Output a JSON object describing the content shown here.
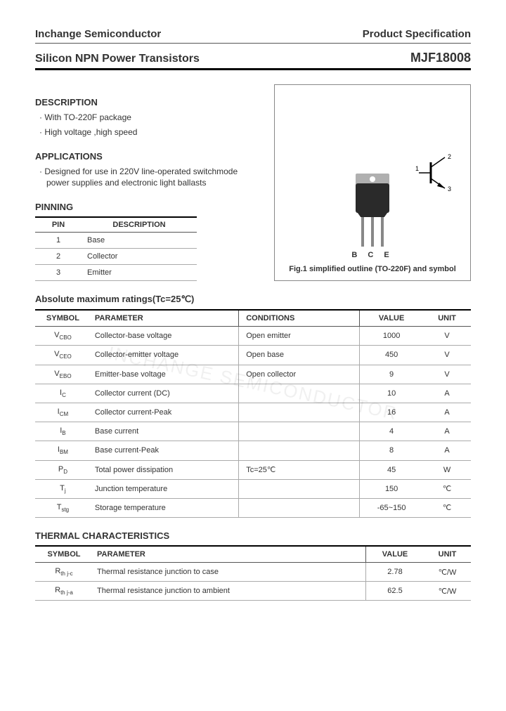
{
  "header": {
    "company": "Inchange Semiconductor",
    "doctype": "Product Specification"
  },
  "title": {
    "product_line": "Silicon NPN Power Transistors",
    "part_number": "MJF18008"
  },
  "description": {
    "heading": "DESCRIPTION",
    "items": [
      "With TO-220F package",
      "High voltage ,high speed"
    ]
  },
  "applications": {
    "heading": "APPLICATIONS",
    "items": [
      "Designed for use in 220V line-operated switchmode power supplies and electronic light ballasts"
    ]
  },
  "pinning": {
    "heading": "PINNING",
    "columns": [
      "PIN",
      "DESCRIPTION"
    ],
    "rows": [
      [
        "1",
        "Base"
      ],
      [
        "2",
        "Collector"
      ],
      [
        "3",
        "Emitter"
      ]
    ]
  },
  "figure": {
    "pin_labels": "B C E",
    "caption": "Fig.1 simplified outline (TO-220F) and symbol",
    "symbol_labels": {
      "base": "1",
      "collector": "2",
      "emitter": "3"
    }
  },
  "ratings": {
    "heading": "Absolute maximum ratings(Tc=25℃)",
    "columns": [
      "SYMBOL",
      "PARAMETER",
      "CONDITIONS",
      "VALUE",
      "UNIT"
    ],
    "rows": [
      {
        "sym": "V",
        "sub": "CBO",
        "param": "Collector-base voltage",
        "cond": "Open emitter",
        "val": "1000",
        "unit": "V"
      },
      {
        "sym": "V",
        "sub": "CEO",
        "param": "Collector-emitter voltage",
        "cond": "Open base",
        "val": "450",
        "unit": "V"
      },
      {
        "sym": "V",
        "sub": "EBO",
        "param": "Emitter-base voltage",
        "cond": "Open collector",
        "val": "9",
        "unit": "V"
      },
      {
        "sym": "I",
        "sub": "C",
        "param": "Collector current (DC)",
        "cond": "",
        "val": "10",
        "unit": "A"
      },
      {
        "sym": "I",
        "sub": "CM",
        "param": "Collector current-Peak",
        "cond": "",
        "val": "16",
        "unit": "A"
      },
      {
        "sym": "I",
        "sub": "B",
        "param": "Base current",
        "cond": "",
        "val": "4",
        "unit": "A"
      },
      {
        "sym": "I",
        "sub": "BM",
        "param": "Base current-Peak",
        "cond": "",
        "val": "8",
        "unit": "A"
      },
      {
        "sym": "P",
        "sub": "D",
        "param": "Total power dissipation",
        "cond": "Tc=25℃",
        "val": "45",
        "unit": "W"
      },
      {
        "sym": "T",
        "sub": "j",
        "param": "Junction temperature",
        "cond": "",
        "val": "150",
        "unit": "℃"
      },
      {
        "sym": "T",
        "sub": "stg",
        "param": "Storage temperature",
        "cond": "",
        "val": "-65~150",
        "unit": "℃"
      }
    ]
  },
  "thermal": {
    "heading": "THERMAL CHARACTERISTICS",
    "columns": [
      "SYMBOL",
      "PARAMETER",
      "VALUE",
      "UNIT"
    ],
    "rows": [
      {
        "sym": "R",
        "sub": "th j-c",
        "param": "Thermal resistance junction to case",
        "val": "2.78",
        "unit": "℃/W"
      },
      {
        "sym": "R",
        "sub": "th j-a",
        "param": "Thermal resistance junction to ambient",
        "val": "62.5",
        "unit": "℃/W"
      }
    ]
  },
  "watermark": "INCHANGE SEMICONDUCTOR",
  "colors": {
    "text": "#333333",
    "border": "#aaaaaa",
    "header_border": "#000000",
    "component_body": "#2a2a2a",
    "component_tab": "#b0b0b0",
    "lead": "#888888"
  }
}
